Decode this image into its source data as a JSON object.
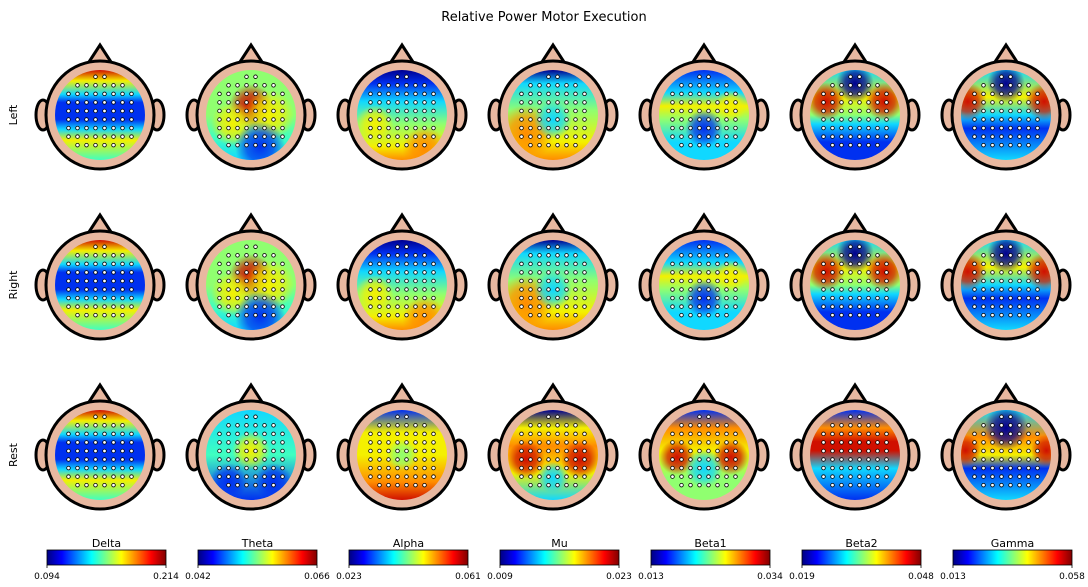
{
  "title": "Relative Power Motor Execution",
  "rows": [
    "Left",
    "Right",
    "Rest"
  ],
  "colormap": "jet",
  "bands": [
    {
      "name": "Delta",
      "lim": [
        0.094,
        0.214
      ],
      "ticks": [
        0.094,
        0.214
      ]
    },
    {
      "name": "Theta",
      "lim": [
        0.042,
        0.066
      ],
      "ticks": [
        0.042,
        0.066
      ]
    },
    {
      "name": "Alpha",
      "lim": [
        0.023,
        0.061
      ],
      "ticks": [
        0.023,
        0.061
      ]
    },
    {
      "name": "Mu",
      "lim": [
        0.009,
        0.023
      ],
      "ticks": [
        0.009,
        0.023
      ]
    },
    {
      "name": "Beta1",
      "lim": [
        0.013,
        0.034
      ],
      "ticks": [
        0.013,
        0.034
      ]
    },
    {
      "name": "Beta2",
      "lim": [
        0.019,
        0.048
      ],
      "ticks": [
        0.019,
        0.048
      ]
    },
    {
      "name": "Gamma",
      "lim": [
        0.013,
        0.058
      ],
      "ticks": [
        0.013,
        0.058
      ]
    }
  ]
}
